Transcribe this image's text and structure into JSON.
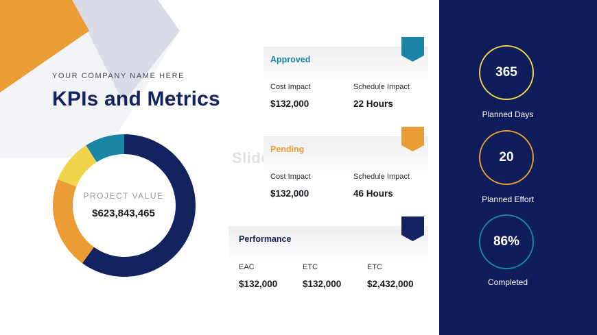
{
  "header": {
    "company": "YOUR COMPANY NAME HERE",
    "title": "KPIs and Metrics"
  },
  "donut": {
    "label": "PROJECT VALUE",
    "value": "$623,843,465",
    "segments": [
      {
        "color": "#13235f",
        "share": 0.6
      },
      {
        "color": "#eb9c35",
        "share": 0.21
      },
      {
        "color": "#f0d44a",
        "share": 0.1
      },
      {
        "color": "#1a86a5",
        "share": 0.09
      }
    ]
  },
  "watermark": "SlideModel",
  "cards": {
    "approved": {
      "title": "Approved",
      "color": "#1a86a5",
      "col1_label": "Cost Impact",
      "col1_value": "$132,000",
      "col2_label": "Schedule Impact",
      "col2_value": "22 Hours"
    },
    "pending": {
      "title": "Pending",
      "color": "#eb9c35",
      "col1_label": "Cost Impact",
      "col1_value": "$132,000",
      "col2_label": "Schedule Impact",
      "col2_value": "46 Hours"
    },
    "performance": {
      "title": "Performance",
      "color": "#13235f",
      "col1_label": "EAC",
      "col1_value": "$132,000",
      "col2_label": "ETC",
      "col2_value": "$132,000",
      "col3_label": "ETC",
      "col3_value": "$2,432,000"
    }
  },
  "panel": {
    "background": "#0f1d5a",
    "metrics": [
      {
        "value": "365",
        "label": "Planned Days",
        "ring_color": "#f0d44a"
      },
      {
        "value": "20",
        "label": "Planned Effort",
        "ring_color": "#eb9c35"
      },
      {
        "value": "86%",
        "label": "Completed",
        "ring_color": "#1a86a5"
      }
    ]
  }
}
